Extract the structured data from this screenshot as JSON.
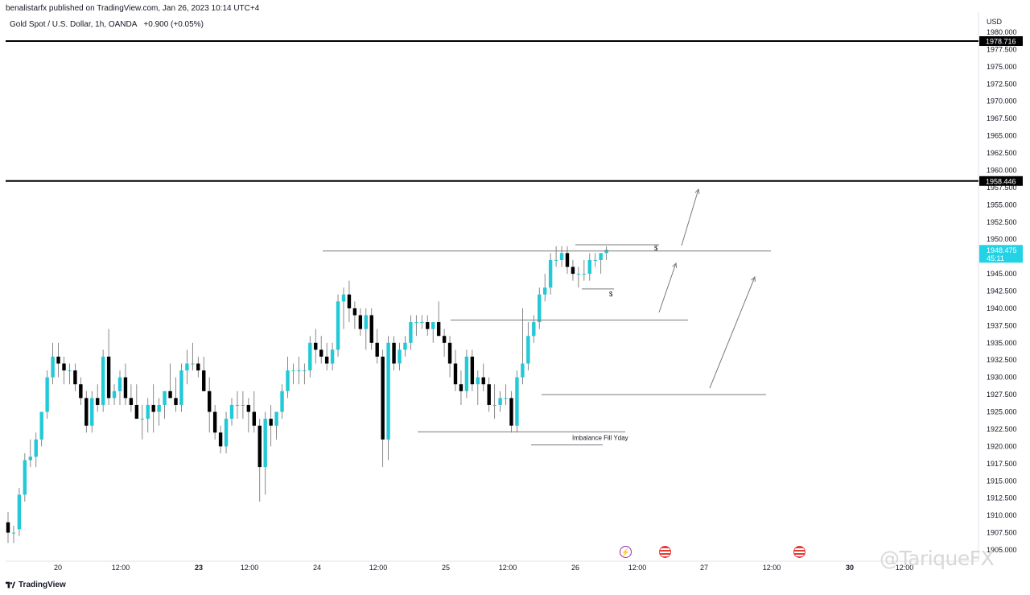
{
  "header": {
    "published_by": "benalistarfx published on TradingView.com, Jan 26, 2023 10:14 UTC+4",
    "symbol": "Gold Spot / U.S. Dollar, 1h, OANDA",
    "change": "+0.900 (+0.05%)"
  },
  "price_axis": {
    "currency": "USD",
    "ticks": [
      "1980.000",
      "1977.500",
      "1975.000",
      "1972.500",
      "1970.000",
      "1967.500",
      "1965.000",
      "1962.500",
      "1960.000",
      "1957.500",
      "1955.000",
      "1952.500",
      "1950.000",
      "1947.500",
      "1945.000",
      "1942.500",
      "1940.000",
      "1937.500",
      "1935.000",
      "1932.500",
      "1930.000",
      "1927.500",
      "1925.000",
      "1922.500",
      "1920.000",
      "1917.500",
      "1915.000",
      "1912.500",
      "1910.000",
      "1907.500",
      "1905.000"
    ],
    "level_labels": [
      "1978.716",
      "1958.446"
    ],
    "current_price": "1948.475",
    "countdown": "45:11"
  },
  "time_axis": {
    "labels": [
      "20",
      "12:00",
      "23",
      "12:00",
      "24",
      "12:00",
      "25",
      "12:00",
      "26",
      "12:00",
      "27",
      "12:00",
      "30",
      "12:00"
    ]
  },
  "annotations": {
    "imbalance": "Imbalance Fill Yday",
    "liq_top": "$",
    "liq_bottom": "$"
  },
  "events": {
    "flash": "⚡"
  },
  "footer": {
    "brand": "TradingView",
    "watermark": "@TariqueFX"
  },
  "colors": {
    "bull": "#22c9d6",
    "bear": "#000000",
    "level_line": "#000000",
    "drawing": "#7a7a7a",
    "price_tag": "#22d3e6"
  },
  "chart_data": {
    "type": "candlestick",
    "title": "Gold Spot / U.S. Dollar, 1h, OANDA",
    "ylim": [
      1904.5,
      1980.5
    ],
    "horizontal_levels": [
      1978.716,
      1958.446
    ],
    "candles": [
      [
        1909,
        1910.5,
        1906,
        1907.5
      ],
      [
        1907.5,
        1908.5,
        1906,
        1907.5
      ],
      [
        1908,
        1914,
        1907,
        1913
      ],
      [
        1913,
        1919,
        1912,
        1918
      ],
      [
        1918,
        1921,
        1917,
        1918.5
      ],
      [
        1918.5,
        1922,
        1917,
        1921
      ],
      [
        1921,
        1925,
        1920,
        1925
      ],
      [
        1925,
        1931,
        1924,
        1930
      ],
      [
        1930,
        1935,
        1929,
        1933
      ],
      [
        1933,
        1935,
        1930,
        1932
      ],
      [
        1932,
        1933,
        1929,
        1931
      ],
      [
        1931,
        1932,
        1929,
        1931
      ],
      [
        1931,
        1932,
        1928,
        1929
      ],
      [
        1929,
        1930,
        1926,
        1927
      ],
      [
        1927,
        1928,
        1922,
        1923
      ],
      [
        1923,
        1928,
        1922,
        1927
      ],
      [
        1927,
        1929,
        1925,
        1926
      ],
      [
        1926,
        1934,
        1925,
        1933
      ],
      [
        1933,
        1937,
        1926,
        1927
      ],
      [
        1927,
        1929,
        1926,
        1928
      ],
      [
        1928,
        1931,
        1926,
        1930
      ],
      [
        1930,
        1932,
        1926,
        1927
      ],
      [
        1927,
        1929,
        1925,
        1926
      ],
      [
        1926,
        1929,
        1924,
        1924
      ],
      [
        1924,
        1926,
        1921,
        1924
      ],
      [
        1924,
        1927,
        1922,
        1926
      ],
      [
        1926,
        1929,
        1922,
        1925
      ],
      [
        1925,
        1927,
        1923,
        1926
      ],
      [
        1926,
        1928,
        1924,
        1928
      ],
      [
        1928,
        1932,
        1927,
        1927
      ],
      [
        1927,
        1930,
        1925,
        1926
      ],
      [
        1926,
        1932,
        1925,
        1931
      ],
      [
        1931,
        1934,
        1929,
        1932
      ],
      [
        1932,
        1935,
        1931,
        1932
      ],
      [
        1932,
        1933,
        1930,
        1931
      ],
      [
        1931,
        1933,
        1928,
        1928
      ],
      [
        1928,
        1930,
        1922,
        1925
      ],
      [
        1925,
        1926,
        1921,
        1922
      ],
      [
        1922,
        1923,
        1919,
        1920
      ],
      [
        1920,
        1925,
        1919,
        1924
      ],
      [
        1924,
        1927,
        1923,
        1926
      ],
      [
        1926,
        1928,
        1924,
        1926
      ],
      [
        1926,
        1928,
        1924,
        1926
      ],
      [
        1926,
        1927,
        1922,
        1925
      ],
      [
        1925,
        1928,
        1922,
        1923
      ],
      [
        1923,
        1924,
        1912,
        1917
      ],
      [
        1917,
        1925,
        1913,
        1924
      ],
      [
        1924,
        1926,
        1920,
        1923
      ],
      [
        1923,
        1925,
        1921,
        1925
      ],
      [
        1925,
        1929,
        1924,
        1928
      ],
      [
        1928,
        1933,
        1927,
        1931
      ],
      [
        1931,
        1932,
        1929,
        1931
      ],
      [
        1931,
        1933,
        1929,
        1931
      ],
      [
        1931,
        1932,
        1929,
        1931
      ],
      [
        1931,
        1936,
        1930,
        1935
      ],
      [
        1935,
        1937,
        1932,
        1934
      ],
      [
        1934,
        1936,
        1932,
        1933
      ],
      [
        1933,
        1935,
        1931,
        1932
      ],
      [
        1932,
        1935,
        1931,
        1934
      ],
      [
        1934,
        1942,
        1933,
        1941
      ],
      [
        1941,
        1943,
        1937,
        1942
      ],
      [
        1942,
        1944,
        1938,
        1940
      ],
      [
        1940,
        1941,
        1937,
        1939
      ],
      [
        1939,
        1940,
        1936,
        1937
      ],
      [
        1937,
        1940,
        1934,
        1939
      ],
      [
        1939,
        1940,
        1934,
        1935
      ],
      [
        1935,
        1937,
        1932,
        1933
      ],
      [
        1933,
        1934,
        1917,
        1921
      ],
      [
        1921,
        1936,
        1918,
        1935
      ],
      [
        1935,
        1936,
        1931,
        1932
      ],
      [
        1932,
        1935,
        1931,
        1934
      ],
      [
        1934,
        1936,
        1933,
        1935
      ],
      [
        1935,
        1939,
        1934,
        1938
      ],
      [
        1938,
        1939,
        1936,
        1938
      ],
      [
        1938,
        1939,
        1937,
        1938
      ],
      [
        1938,
        1939,
        1936,
        1937
      ],
      [
        1937,
        1938,
        1935,
        1938
      ],
      [
        1938,
        1941,
        1936,
        1936
      ],
      [
        1936,
        1937,
        1933,
        1935
      ],
      [
        1935,
        1936,
        1930,
        1932
      ],
      [
        1932,
        1934,
        1928,
        1929
      ],
      [
        1929,
        1931,
        1926,
        1928
      ],
      [
        1928,
        1934,
        1927,
        1933
      ],
      [
        1933,
        1934,
        1928,
        1929
      ],
      [
        1929,
        1931,
        1926,
        1930
      ],
      [
        1930,
        1932,
        1928,
        1929
      ],
      [
        1929,
        1930,
        1925,
        1926
      ],
      [
        1926,
        1929,
        1924,
        1926
      ],
      [
        1926,
        1928,
        1925,
        1927
      ],
      [
        1927,
        1929,
        1926,
        1927
      ],
      [
        1927,
        1928,
        1922,
        1923
      ],
      [
        1923,
        1931,
        1922,
        1930
      ],
      [
        1930,
        1940,
        1929,
        1932
      ],
      [
        1932,
        1938,
        1931,
        1936
      ],
      [
        1936,
        1939,
        1935,
        1938
      ],
      [
        1938,
        1943,
        1937,
        1942
      ],
      [
        1942,
        1945,
        1941,
        1943
      ],
      [
        1943,
        1948,
        1942,
        1947
      ],
      [
        1947,
        1949,
        1946,
        1947
      ],
      [
        1947,
        1949,
        1946,
        1948
      ],
      [
        1948,
        1949,
        1945,
        1946
      ],
      [
        1946,
        1947,
        1944,
        1945
      ],
      [
        1945,
        1946,
        1943,
        1945
      ],
      [
        1945,
        1947,
        1944,
        1945
      ],
      [
        1945,
        1948,
        1944,
        1947
      ],
      [
        1947,
        1948,
        1946,
        1947
      ],
      [
        1947,
        1948,
        1945,
        1948
      ],
      [
        1948,
        1949,
        1947,
        1948.475
      ]
    ]
  }
}
